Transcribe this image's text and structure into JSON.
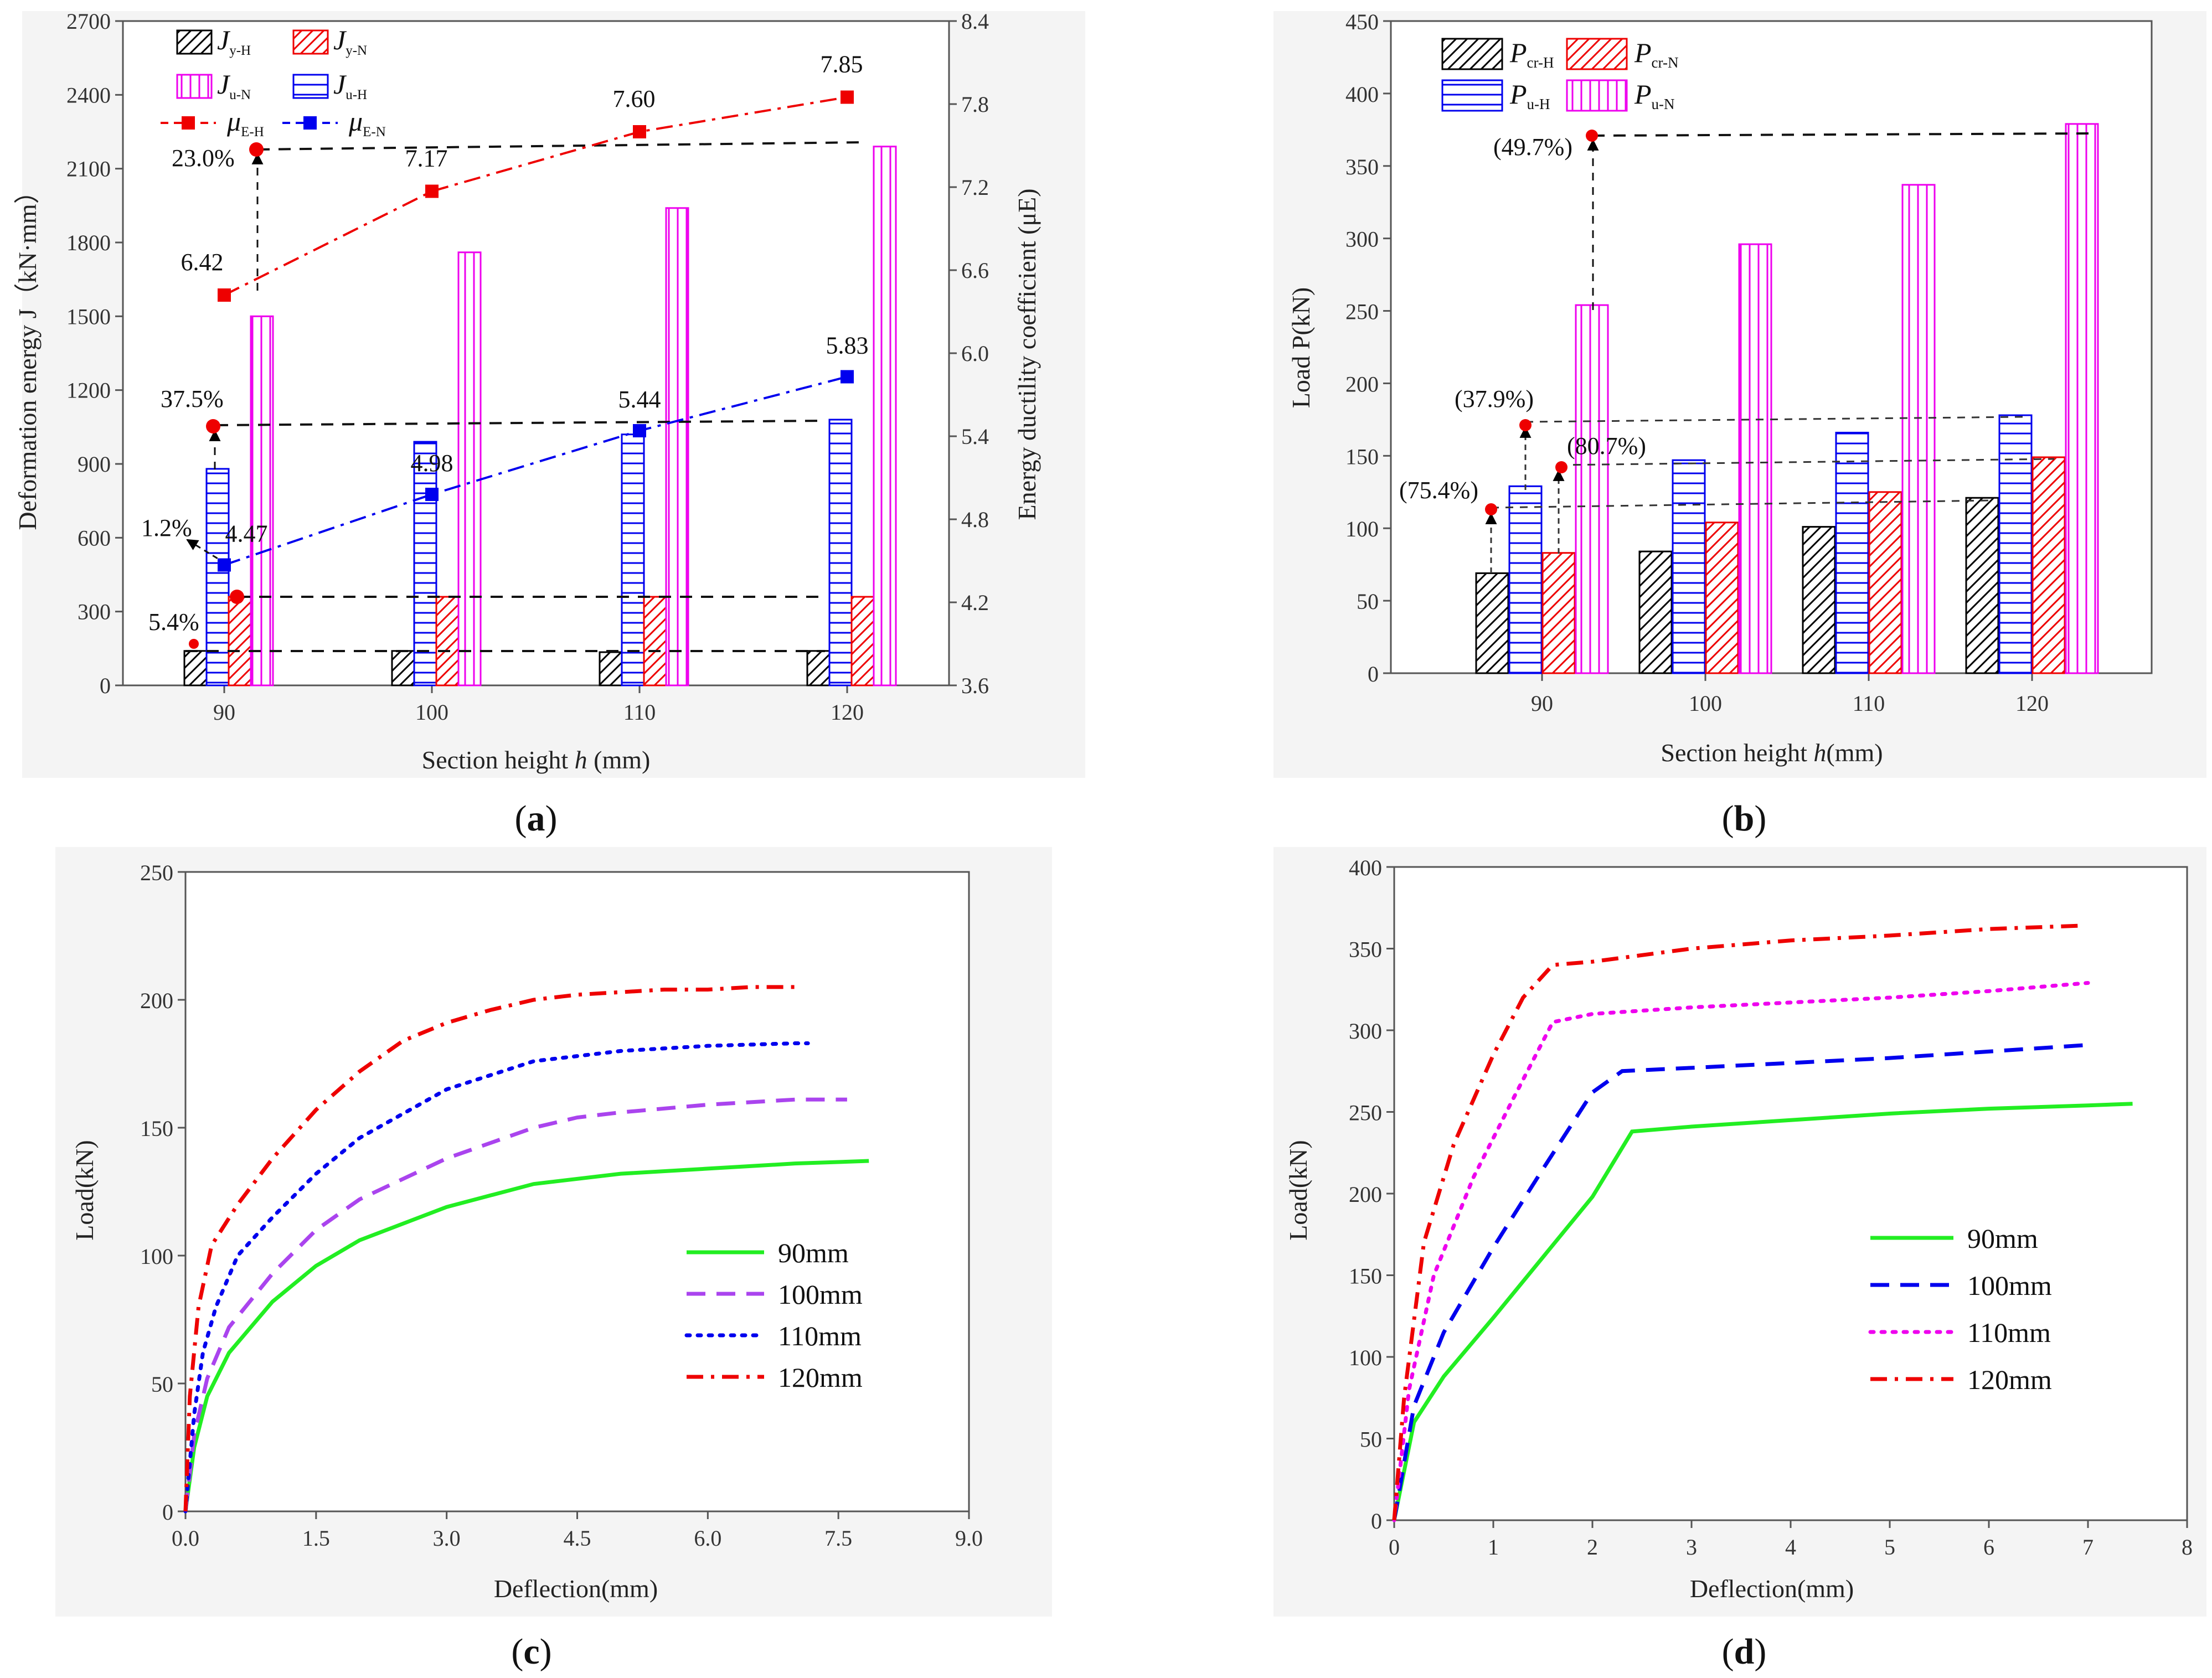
{
  "chart_data": [
    {
      "id": "a",
      "type": "bar",
      "caption": "a",
      "categories": [
        "90",
        "100",
        "110",
        "120"
      ],
      "xlabel_prefix": "Section height ",
      "xlabel_var": "h",
      "xlabel_suffix": " (mm)",
      "ylabel_left": "Deformation energy J（kN·mm）",
      "ylabel_right": "Energy ductility coefficient (μE)",
      "ylim_left": [
        0,
        2700
      ],
      "yticks_left": [
        "0",
        "300",
        "600",
        "900",
        "1200",
        "1500",
        "1800",
        "2100",
        "2400",
        "2700"
      ],
      "ylim_right": [
        3.6,
        8.4
      ],
      "yticks_right": [
        "3.6",
        "4.2",
        "4.8",
        "5.4",
        "6.0",
        "6.6",
        "7.2",
        "7.8",
        "8.4"
      ],
      "bar_series": [
        {
          "name": "Jy-H",
          "base": "J",
          "sub": "y-H",
          "color": "#000000",
          "pattern": "diag",
          "values": [
            140,
            140,
            135,
            140
          ]
        },
        {
          "name": "Ju-H",
          "base": "J",
          "sub": "u-H",
          "color": "#0000ee",
          "pattern": "horiz",
          "values": [
            880,
            990,
            1020,
            1080
          ]
        },
        {
          "name": "Jy-N",
          "base": "J",
          "sub": "y-N",
          "color": "#ee0000",
          "pattern": "diag",
          "values": [
            360,
            360,
            360,
            360
          ]
        },
        {
          "name": "Ju-N",
          "base": "J",
          "sub": "u-N",
          "color": "#ee00ee",
          "pattern": "vert",
          "values": [
            1500,
            1760,
            1940,
            2190
          ]
        }
      ],
      "line_series": [
        {
          "name": "μE-H",
          "base": "μ",
          "sub": "E-H",
          "color": "#ee0000",
          "values": [
            6.42,
            7.17,
            7.6,
            7.85
          ],
          "labels": [
            "6.42",
            "7.17",
            "7.60",
            "7.85"
          ]
        },
        {
          "name": "μE-N",
          "base": "μ",
          "sub": "E-N",
          "color": "#0000ee",
          "values": [
            4.47,
            4.98,
            5.44,
            5.83
          ],
          "labels": [
            "4.47",
            "4.98",
            "5.44",
            "5.83"
          ]
        }
      ],
      "annotations": [
        "23.0%",
        "37.5%",
        "1.2%",
        "5.4%"
      ]
    },
    {
      "id": "b",
      "type": "bar",
      "caption": "b",
      "categories": [
        "90",
        "100",
        "110",
        "120"
      ],
      "xlabel_prefix": "Section height ",
      "xlabel_var": "h",
      "xlabel_suffix": "(mm)",
      "ylabel": "Load P(kN)",
      "ylim": [
        0,
        450
      ],
      "yticks": [
        "0",
        "50",
        "100",
        "150",
        "200",
        "250",
        "300",
        "350",
        "400",
        "450"
      ],
      "series": [
        {
          "name": "Pcr-H",
          "base": "P",
          "sub": "cr-H",
          "color": "#000000",
          "pattern": "diag",
          "values": [
            69,
            84,
            101,
            121
          ]
        },
        {
          "name": "Pu-H",
          "base": "P",
          "sub": "u-H",
          "color": "#0000ee",
          "pattern": "horiz",
          "values": [
            129,
            147,
            166,
            178
          ]
        },
        {
          "name": "Pcr-N",
          "base": "P",
          "sub": "cr-N",
          "color": "#ee0000",
          "pattern": "diag",
          "values": [
            83,
            104,
            125,
            149
          ]
        },
        {
          "name": "Pu-N",
          "base": "P",
          "sub": "u-N",
          "color": "#ee00ee",
          "pattern": "vert",
          "values": [
            254,
            296,
            337,
            379
          ]
        }
      ],
      "annotations": [
        "(49.7%)",
        "(37.9%)",
        "(80.7%)",
        "(75.4%)"
      ]
    },
    {
      "id": "c",
      "type": "line",
      "caption": "c",
      "xlabel": "Deflection(mm)",
      "ylabel": "Load(kN)",
      "xlim": [
        0,
        9
      ],
      "xticks": [
        "0.0",
        "1.5",
        "3.0",
        "4.5",
        "6.0",
        "7.5",
        "9.0"
      ],
      "ylim": [
        0,
        250
      ],
      "yticks": [
        "0",
        "50",
        "100",
        "150",
        "200",
        "250"
      ],
      "series": [
        {
          "name": "90mm",
          "color": "#22ee22",
          "dash": "solid",
          "x": [
            0,
            0.1,
            0.25,
            0.5,
            1.0,
            1.5,
            2.0,
            3.0,
            4.0,
            5.0,
            6.0,
            7.0,
            7.85
          ],
          "y": [
            0,
            25,
            45,
            62,
            82,
            96,
            106,
            119,
            128,
            132,
            134,
            136,
            137
          ]
        },
        {
          "name": "100mm",
          "color": "#aa44ee",
          "dash": "dash",
          "x": [
            0,
            0.1,
            0.25,
            0.5,
            1.0,
            1.5,
            2.0,
            3.0,
            4.0,
            4.5,
            5.0,
            6.0,
            7.0,
            7.6
          ],
          "y": [
            0,
            30,
            52,
            72,
            93,
            110,
            122,
            138,
            150,
            154,
            156,
            159,
            161,
            161
          ]
        },
        {
          "name": "110mm",
          "color": "#0000ee",
          "dash": "dot",
          "x": [
            0,
            0.1,
            0.2,
            0.35,
            0.6,
            1.0,
            1.5,
            2.0,
            3.0,
            4.0,
            4.5,
            5.0,
            6.0,
            7.0,
            7.15
          ],
          "y": [
            0,
            38,
            62,
            80,
            100,
            115,
            132,
            146,
            165,
            176,
            178,
            180,
            182,
            183,
            183
          ]
        },
        {
          "name": "120mm",
          "color": "#ee0000",
          "dash": "dashdot",
          "x": [
            0,
            0.05,
            0.15,
            0.3,
            0.6,
            1.0,
            1.5,
            2.0,
            2.5,
            3.0,
            3.5,
            4.0,
            4.5,
            5.0,
            5.5,
            6.0,
            6.5,
            7.0
          ],
          "y": [
            0,
            45,
            80,
            104,
            120,
            138,
            157,
            172,
            184,
            191,
            196,
            200,
            202,
            203,
            204,
            204,
            205,
            205
          ]
        }
      ]
    },
    {
      "id": "d",
      "type": "line",
      "caption": "d",
      "xlabel": "Deflection(mm)",
      "ylabel": "Load(kN)",
      "xlim": [
        0,
        8
      ],
      "xticks": [
        "0",
        "1",
        "2",
        "3",
        "4",
        "5",
        "6",
        "7",
        "8"
      ],
      "ylim": [
        0,
        400
      ],
      "yticks": [
        "0",
        "50",
        "100",
        "150",
        "200",
        "250",
        "300",
        "350",
        "400"
      ],
      "series": [
        {
          "name": "90mm",
          "color": "#22ee22",
          "dash": "solid",
          "x": [
            0,
            0.2,
            0.5,
            1.0,
            2.0,
            2.4,
            3.0,
            4.0,
            5.0,
            6.0,
            7.0,
            7.45
          ],
          "y": [
            0,
            60,
            88,
            124,
            198,
            238,
            241,
            245,
            249,
            252,
            254,
            255
          ]
        },
        {
          "name": "100mm",
          "color": "#0000ee",
          "dash": "dash",
          "x": [
            0,
            0.2,
            0.5,
            1.0,
            1.5,
            2.0,
            2.3,
            3.0,
            4.0,
            5.0,
            6.0,
            7.0
          ],
          "y": [
            0,
            70,
            115,
            167,
            215,
            262,
            275,
            277,
            280,
            283,
            287,
            291
          ]
        },
        {
          "name": "110mm",
          "color": "#ee00ee",
          "dash": "dot",
          "x": [
            0,
            0.15,
            0.4,
            0.8,
            1.2,
            1.6,
            2.0,
            3.0,
            4.0,
            5.0,
            6.0,
            7.0
          ],
          "y": [
            0,
            80,
            150,
            210,
            258,
            305,
            310,
            314,
            317,
            320,
            324,
            329
          ]
        },
        {
          "name": "120mm",
          "color": "#ee0000",
          "dash": "dashdot",
          "x": [
            0,
            0.1,
            0.3,
            0.6,
            1.0,
            1.3,
            1.6,
            2.0,
            3.0,
            4.0,
            5.0,
            6.0,
            6.9
          ],
          "y": [
            0,
            75,
            170,
            230,
            285,
            320,
            340,
            342,
            350,
            355,
            358,
            362,
            364
          ]
        }
      ]
    }
  ]
}
